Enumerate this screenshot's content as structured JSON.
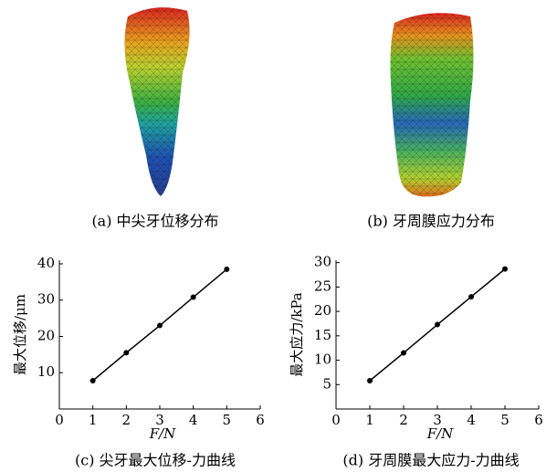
{
  "images": [
    {
      "caption": "(a) 中尖牙位移分布"
    },
    {
      "caption": "(b) 牙周膜应力分布"
    }
  ],
  "chart_data": [
    {
      "type": "line",
      "title": "(c) 尖牙最大位移-力曲线",
      "xlabel": "F/N",
      "ylabel": "最大位移/μm",
      "x": [
        1,
        2,
        3,
        4,
        5
      ],
      "series": [
        {
          "values": [
            7.8,
            15.5,
            23,
            30.8,
            38.5
          ],
          "color": "#000000"
        }
      ],
      "xlim": [
        0,
        6
      ],
      "xticks": [
        0,
        1,
        2,
        3,
        4,
        5,
        6
      ],
      "ylim": [
        0,
        41
      ],
      "yticks": [
        10,
        20,
        30,
        40
      ]
    },
    {
      "type": "line",
      "title": "(d) 牙周膜最大应力-力曲线",
      "xlabel": "F/N",
      "ylabel": "最大应力/kPa",
      "x": [
        1,
        2,
        3,
        4,
        5
      ],
      "series": [
        {
          "values": [
            5.8,
            11.5,
            17.3,
            23,
            28.7
          ],
          "color": "#000000"
        }
      ],
      "xlim": [
        0,
        6
      ],
      "xticks": [
        0,
        1,
        2,
        3,
        4,
        5,
        6
      ],
      "ylim": [
        0,
        30.5
      ],
      "yticks": [
        5,
        10,
        15,
        20,
        25,
        30
      ]
    }
  ]
}
